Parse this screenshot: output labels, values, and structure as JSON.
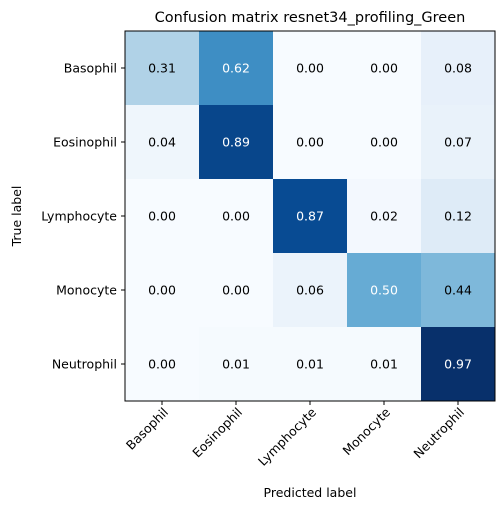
{
  "chart_data": {
    "type": "heatmap",
    "title": "Confusion matrix resnet34_profiling_Green",
    "xlabel": "Predicted label",
    "ylabel": "True label",
    "x_categories": [
      "Basophil",
      "Eosinophil",
      "Lymphocyte",
      "Monocyte",
      "Neutrophil"
    ],
    "y_categories": [
      "Basophil",
      "Eosinophil",
      "Lymphocyte",
      "Monocyte",
      "Neutrophil"
    ],
    "values": [
      [
        0.31,
        0.62,
        0.0,
        0.0,
        0.08
      ],
      [
        0.04,
        0.89,
        0.0,
        0.0,
        0.07
      ],
      [
        0.0,
        0.0,
        0.87,
        0.02,
        0.12
      ],
      [
        0.0,
        0.0,
        0.06,
        0.5,
        0.44
      ],
      [
        0.0,
        0.01,
        0.01,
        0.01,
        0.97
      ]
    ],
    "value_format": "0.00",
    "colormap": "Blues",
    "vmin": 0,
    "vmax": 0.97,
    "grid": false,
    "legend": "none"
  }
}
